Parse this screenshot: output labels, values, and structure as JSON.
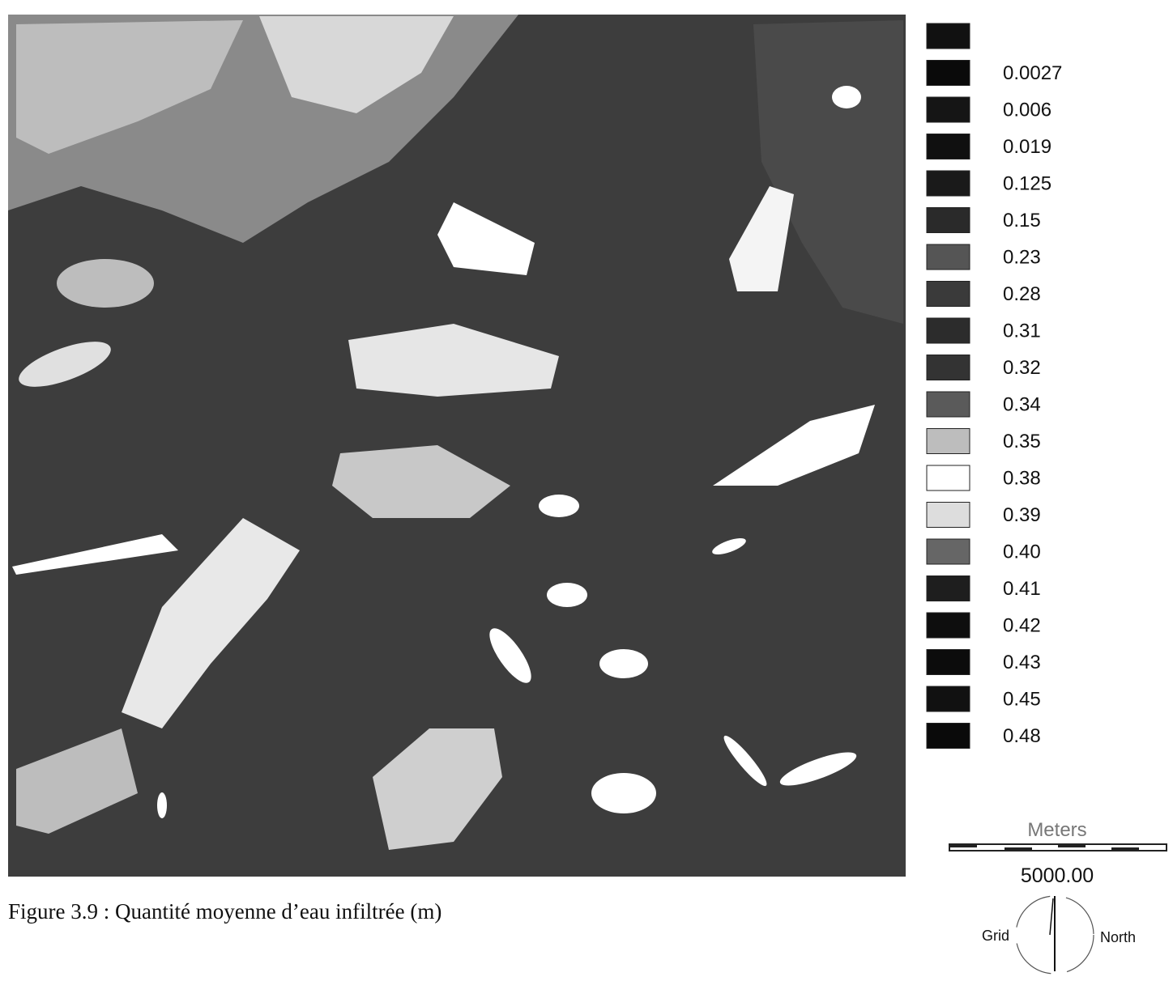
{
  "map": {
    "legend": [
      {
        "label": null,
        "color": "#111111"
      },
      {
        "label": "0.0027",
        "color": "#0a0a0a"
      },
      {
        "label": "0.006",
        "color": "#151515"
      },
      {
        "label": "0.019",
        "color": "#101010"
      },
      {
        "label": "0.125",
        "color": "#1a1a1a"
      },
      {
        "label": "0.15",
        "color": "#2a2a2a"
      },
      {
        "label": "0.23",
        "color": "#555555"
      },
      {
        "label": "0.28",
        "color": "#3a3a3a"
      },
      {
        "label": "0.31",
        "color": "#2c2c2c"
      },
      {
        "label": "0.32",
        "color": "#333333"
      },
      {
        "label": "0.34",
        "color": "#5a5a5a"
      },
      {
        "label": "0.35",
        "color": "#bdbdbd"
      },
      {
        "label": "0.38",
        "color": "#ffffff"
      },
      {
        "label": "0.39",
        "color": "#dddddd"
      },
      {
        "label": "0.40",
        "color": "#666666"
      },
      {
        "label": "0.41",
        "color": "#1e1e1e"
      },
      {
        "label": "0.42",
        "color": "#0e0e0e"
      },
      {
        "label": "0.43",
        "color": "#0c0c0c"
      },
      {
        "label": "0.45",
        "color": "#111111"
      },
      {
        "label": "0.48",
        "color": "#0a0a0a"
      }
    ],
    "scale": {
      "unit": "Meters",
      "distance": "5000.00"
    },
    "north_arrow": {
      "left": "Grid",
      "right": "North"
    },
    "caption": "Figure 3.9 : Quantité moyenne d’eau infiltrée (m)"
  }
}
